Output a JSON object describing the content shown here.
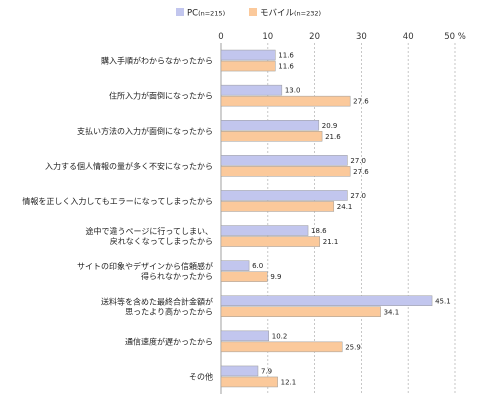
{
  "chart_data": {
    "type": "bar",
    "orientation": "horizontal",
    "series": [
      {
        "name": "PC",
        "n_label": "(n=215)",
        "color": "#c2c6ee",
        "values": [
          11.6,
          13.0,
          20.9,
          27.0,
          27.0,
          18.6,
          6.0,
          45.1,
          10.2,
          7.9
        ]
      },
      {
        "name": "モバイル",
        "n_label": "(n=232)",
        "color": "#fbc99b",
        "values": [
          11.6,
          27.6,
          21.6,
          27.6,
          24.1,
          21.1,
          9.9,
          34.1,
          25.9,
          12.1
        ]
      }
    ],
    "categories": [
      [
        "購入手順がわからなかったから"
      ],
      [
        "住所入力が面倒になったから"
      ],
      [
        "支払い方法の入力が面倒になったから"
      ],
      [
        "入力する個人情報の量が多く不安になったから"
      ],
      [
        "情報を正しく入力してもエラーになってしまったから"
      ],
      [
        "途中で違うページに行ってしまい、",
        "戻れなくなってしまったから"
      ],
      [
        "サイトの印象やデザインから信頼感が",
        "得られなかったから"
      ],
      [
        "送料等を含めた最終合計金額が",
        "思ったより高かったから"
      ],
      [
        "通信速度が遅かったから"
      ],
      [
        "その他"
      ]
    ],
    "xlim": [
      0,
      50
    ],
    "xticks": [
      0,
      10,
      20,
      30,
      40,
      50
    ],
    "unit": "%",
    "grid": true,
    "legend_position": "top"
  }
}
